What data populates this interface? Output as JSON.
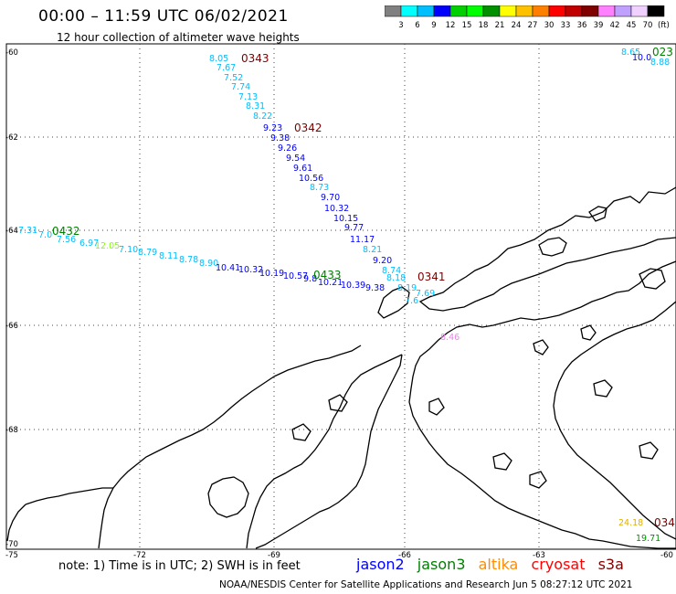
{
  "header": {
    "title": "00:00 – 11:59 UTC 06/02/2021",
    "subtitle": "12 hour collection of altimeter wave heights"
  },
  "legend": {
    "colors": [
      "#808080",
      "#00ffff",
      "#00bfff",
      "#0000ff",
      "#00d000",
      "#00ff00",
      "#009000",
      "#ffff00",
      "#ffc000",
      "#ff8000",
      "#ff0000",
      "#c00000",
      "#800000",
      "#ff80ff",
      "#c0a0ff",
      "#f0d0ff",
      "#000000"
    ],
    "ticks": [
      "3",
      "6",
      "9",
      "12",
      "15",
      "18",
      "21",
      "24",
      "27",
      "30",
      "33",
      "36",
      "39",
      "42",
      "45",
      "70"
    ],
    "unit": "(ft)"
  },
  "axes": {
    "lat_labels": [
      "-60",
      "-62",
      "-64",
      "-66",
      "-68",
      "-70"
    ],
    "lon_labels": [
      "-75",
      "-72",
      "-69",
      "-66",
      "-63",
      "-60"
    ]
  },
  "colors": {
    "jason2": "#0000ff",
    "jason3": "#008000",
    "altika": "#ff8c00",
    "cryosat": "#ff0000",
    "s3a": "#800000",
    "pink": "#ee82ee"
  },
  "tracks": [
    {
      "time": "0343",
      "color": "#800000"
    },
    {
      "time": "0342",
      "color": "#800000"
    },
    {
      "time": "0341",
      "color": "#800000"
    },
    {
      "time": "0432",
      "color": "#008000"
    },
    {
      "time": "0433",
      "color": "#008000"
    },
    {
      "time": "023",
      "color": "#008000"
    },
    {
      "time": "034",
      "color": "#800000"
    }
  ],
  "observations": [
    {
      "value": "8.05",
      "color": "#00bfff"
    },
    {
      "value": "7.67",
      "color": "#00bfff"
    },
    {
      "value": "7.52",
      "color": "#00bfff"
    },
    {
      "value": "7.74",
      "color": "#00bfff"
    },
    {
      "value": "7.13",
      "color": "#00bfff"
    },
    {
      "value": "8.31",
      "color": "#00bfff"
    },
    {
      "value": "8.22",
      "color": "#00bfff"
    },
    {
      "value": "9.23",
      "color": "#0000ff"
    },
    {
      "value": "9.38",
      "color": "#0000ff"
    },
    {
      "value": "9.26",
      "color": "#0000ff"
    },
    {
      "value": "9.54",
      "color": "#0000ff"
    },
    {
      "value": "9.61",
      "color": "#0000ff"
    },
    {
      "value": "10.56",
      "color": "#0000ff"
    },
    {
      "value": "8.73",
      "color": "#00bfff"
    },
    {
      "value": "9.70",
      "color": "#0000ff"
    },
    {
      "value": "10.32",
      "color": "#0000ff"
    },
    {
      "value": "10.15",
      "color": "#0000ff"
    },
    {
      "value": "9.77",
      "color": "#0000ff"
    },
    {
      "value": "11.17",
      "color": "#0000ff"
    },
    {
      "value": "8.21",
      "color": "#00bfff"
    },
    {
      "value": "9.20",
      "color": "#0000ff"
    },
    {
      "value": "8.74",
      "color": "#00bfff"
    },
    {
      "value": "8.18",
      "color": "#00bfff"
    },
    {
      "value": "8.19",
      "color": "#00bfff"
    },
    {
      "value": "7.69",
      "color": "#00bfff"
    },
    {
      "value": "7.6",
      "color": "#00bfff"
    },
    {
      "value": "7.31",
      "color": "#00bfff"
    },
    {
      "value": "7.0",
      "color": "#00bfff"
    },
    {
      "value": "7.56",
      "color": "#00bfff"
    },
    {
      "value": "6.97",
      "color": "#00bfff"
    },
    {
      "value": "12.05",
      "color": "#7fff00"
    },
    {
      "value": "7.10",
      "color": "#00bfff"
    },
    {
      "value": "8.79",
      "color": "#00bfff"
    },
    {
      "value": "8.11",
      "color": "#00bfff"
    },
    {
      "value": "8.78",
      "color": "#00bfff"
    },
    {
      "value": "8.90",
      "color": "#00bfff"
    },
    {
      "value": "10.41",
      "color": "#0000ff"
    },
    {
      "value": "10.32",
      "color": "#0000ff"
    },
    {
      "value": "10.19",
      "color": "#0000ff"
    },
    {
      "value": "10.57",
      "color": "#0000ff"
    },
    {
      "value": "9.8",
      "color": "#0000ff"
    },
    {
      "value": "10.21",
      "color": "#0000ff"
    },
    {
      "value": "10.39",
      "color": "#0000ff"
    },
    {
      "value": "9.38",
      "color": "#0000ff"
    },
    {
      "value": "8.46",
      "color": "#ee82ee"
    },
    {
      "value": "8.65",
      "color": "#00bfff"
    },
    {
      "value": "10.0",
      "color": "#0000ff"
    },
    {
      "value": "8.88",
      "color": "#00bfff"
    },
    {
      "value": "24.18",
      "color": "#e0b000"
    },
    {
      "value": "19.71",
      "color": "#009000"
    }
  ],
  "footer": {
    "note": "note:  1) Time is in UTC;  2) SWH is in feet",
    "satellites": [
      {
        "name": "jason2",
        "color": "#0000ff"
      },
      {
        "name": "jason3",
        "color": "#008000"
      },
      {
        "name": "altika",
        "color": "#ff8c00"
      },
      {
        "name": "cryosat",
        "color": "#ff0000"
      },
      {
        "name": "s3a",
        "color": "#800000"
      }
    ],
    "credit": "NOAA/NESDIS Center for Satellite Applications and Research    Jun  5 08:27:12 UTC 2021"
  }
}
